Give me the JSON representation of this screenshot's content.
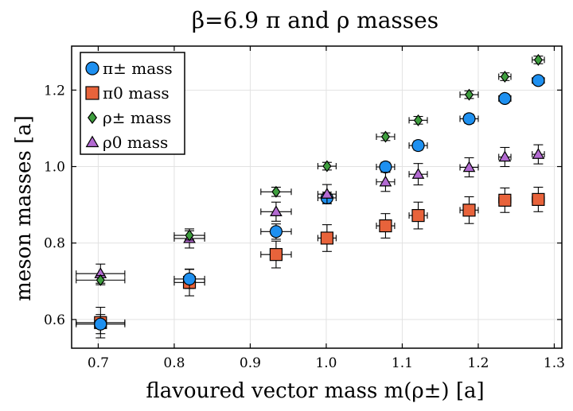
{
  "chart_data": {
    "type": "scatter",
    "title": "β=6.9    π and ρ masses",
    "xlabel": "flavoured vector mass m(ρ±) [a]",
    "ylabel": "meson masses [a]",
    "xlim": [
      0.665,
      1.31
    ],
    "ylim": [
      0.525,
      1.315
    ],
    "xticks": [
      0.7,
      0.8,
      0.9,
      1.0,
      1.1,
      1.2,
      1.3
    ],
    "xtick_labels": [
      "0.7",
      "0.8",
      "0.9",
      "1.0",
      "1.1",
      "1.2",
      "1.3"
    ],
    "yticks": [
      0.6,
      0.8,
      1.0,
      1.2
    ],
    "ytick_labels": [
      "0.6",
      "0.8",
      "1.0",
      "1.2"
    ],
    "grid": true,
    "legend_position": "top-left",
    "x": [
      0.703,
      0.82,
      0.934,
      1.001,
      1.078,
      1.121,
      1.188,
      1.235,
      1.279
    ],
    "x_err": [
      0.032,
      0.02,
      0.02,
      0.012,
      0.012,
      0.012,
      0.012,
      0.008,
      0.008
    ],
    "series": [
      {
        "name": "π± mass",
        "marker": "circle",
        "color": "#1e90f0",
        "values": [
          0.588,
          0.706,
          0.83,
          0.918,
          0.999,
          1.055,
          1.125,
          1.178,
          1.225
        ],
        "y_err": [
          0.025,
          0.025,
          0.02,
          0.015,
          0.012,
          0.012,
          0.012,
          0.008,
          0.01
        ]
      },
      {
        "name": "π0 mass",
        "marker": "square",
        "color": "#e8633b",
        "values": [
          0.592,
          0.697,
          0.77,
          0.813,
          0.845,
          0.872,
          0.886,
          0.912,
          0.914
        ],
        "y_err": [
          0.04,
          0.035,
          0.035,
          0.035,
          0.032,
          0.035,
          0.035,
          0.032,
          0.032
        ]
      },
      {
        "name": "ρ± mass",
        "marker": "diamond",
        "color": "#3e9e3e",
        "values": [
          0.703,
          0.82,
          0.934,
          1.001,
          1.078,
          1.121,
          1.188,
          1.235,
          1.279
        ],
        "y_err": [
          0.012,
          0.012,
          0.012,
          0.01,
          0.01,
          0.01,
          0.01,
          0.01,
          0.01
        ]
      },
      {
        "name": "ρ0 mass",
        "marker": "triangle",
        "color": "#b36ad2",
        "values": [
          0.72,
          0.812,
          0.882,
          0.928,
          0.96,
          0.98,
          0.998,
          1.025,
          1.032
        ],
        "y_err": [
          0.025,
          0.025,
          0.025,
          0.025,
          0.025,
          0.028,
          0.025,
          0.025,
          0.025
        ]
      }
    ]
  }
}
